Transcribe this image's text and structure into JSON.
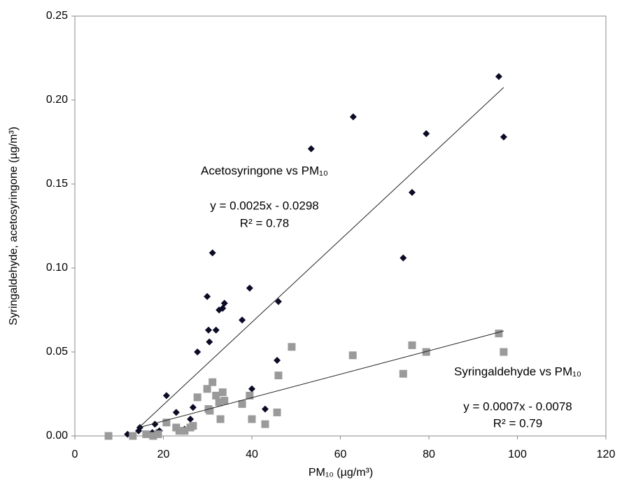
{
  "chart_data": {
    "type": "scatter",
    "xlabel": "PM₁₀ (µg/m³)",
    "ylabel": "Syringaldehyde, acetosyringone (µg/m³)",
    "xlim": [
      0,
      120
    ],
    "xticks": [
      0,
      20,
      40,
      60,
      80,
      100,
      120
    ],
    "ylim": [
      0,
      0.25
    ],
    "yticks": [
      {
        "value": 0,
        "label": "0.00"
      },
      {
        "value": 0.05,
        "label": "0.05"
      },
      {
        "value": 0.1,
        "label": "0.10"
      },
      {
        "value": 0.15,
        "label": "0.15"
      },
      {
        "value": 0.2,
        "label": "0.20"
      },
      {
        "value": 0.25,
        "label": "0.25"
      }
    ],
    "series": [
      {
        "name": "Acetosyringone vs PM₁₀",
        "color": "#0b0b26",
        "marker": "diamond",
        "equation": "y = 0.0025x - 0.0298",
        "r2": "R² = 0.78",
        "x": [
          7.6,
          11.9,
          13.1,
          14.4,
          14.7,
          16.3,
          17.1,
          17.5,
          18.1,
          18.5,
          19.1,
          20.7,
          22.9,
          24.8,
          26.1,
          26.7,
          27.7,
          29.9,
          30.2,
          30.4,
          31.1,
          31.9,
          32.6,
          33.4,
          33.8,
          32.9,
          37.8,
          39.5,
          40.0,
          43.0,
          45.7,
          46.0,
          53.4,
          62.9,
          74.2,
          76.2,
          79.4,
          95.8,
          96.9
        ],
        "values": [
          0.0,
          0.001,
          0.0,
          0.003,
          0.005,
          0.001,
          0.0,
          0.002,
          0.007,
          0.002,
          0.003,
          0.024,
          0.014,
          0.004,
          0.01,
          0.017,
          0.05,
          0.083,
          0.063,
          0.056,
          0.109,
          0.063,
          0.075,
          0.076,
          0.079,
          0.02,
          0.069,
          0.088,
          0.028,
          0.016,
          0.045,
          0.08,
          0.171,
          0.19,
          0.106,
          0.145,
          0.18,
          0.214,
          0.178
        ],
        "trend_x": [
          14.5,
          96.9
        ],
        "trend_values": [
          0.005,
          0.2075
        ]
      },
      {
        "name": "Syringaldehyde vs PM₁₀",
        "color": "#9a9a9a",
        "marker": "square",
        "equation": "y = 0.0007x - 0.0078",
        "r2": "R² = 0.79",
        "x": [
          7.6,
          13.1,
          16.1,
          17.7,
          18.8,
          20.7,
          22.9,
          23.6,
          24.8,
          26.1,
          26.7,
          27.7,
          29.9,
          30.2,
          30.5,
          31.1,
          31.9,
          32.9,
          33.4,
          33.8,
          32.6,
          37.8,
          39.5,
          40.0,
          43.0,
          45.7,
          46.0,
          49.0,
          62.8,
          74.2,
          76.2,
          79.4,
          95.8,
          96.9
        ],
        "values": [
          0.0,
          0.0,
          0.001,
          0.0,
          0.001,
          0.008,
          0.005,
          0.003,
          0.003,
          0.005,
          0.006,
          0.023,
          0.028,
          0.016,
          0.015,
          0.032,
          0.024,
          0.01,
          0.026,
          0.021,
          0.02,
          0.019,
          0.024,
          0.01,
          0.007,
          0.014,
          0.036,
          0.053,
          0.048,
          0.037,
          0.054,
          0.05,
          0.061,
          0.05
        ],
        "trend_x": [
          14.5,
          96.9
        ],
        "trend_values": [
          0.005,
          0.0625
        ]
      }
    ]
  }
}
